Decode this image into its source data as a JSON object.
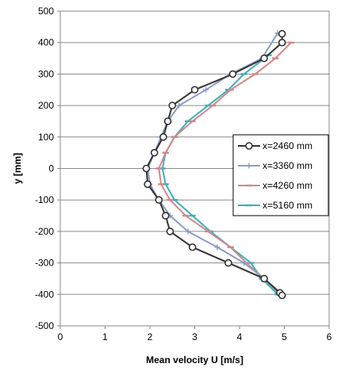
{
  "chart_data": {
    "type": "line",
    "xlabel": "Mean velocity U [m/s]",
    "ylabel": "y [mm]",
    "xlim": [
      0,
      6
    ],
    "ylim": [
      -500,
      500
    ],
    "xticks": [
      0,
      1,
      2,
      3,
      4,
      5,
      6
    ],
    "yticks": [
      -500,
      -400,
      -300,
      -200,
      -100,
      0,
      100,
      200,
      300,
      400,
      500
    ],
    "grid": {
      "y": true,
      "x": false
    },
    "legend_position": "right",
    "series": [
      {
        "name": "x=2460 mm",
        "color": "#333333",
        "marker": "circle",
        "points": [
          [
            4.95,
            428
          ],
          [
            4.95,
            400
          ],
          [
            4.55,
            350
          ],
          [
            3.85,
            300
          ],
          [
            3.0,
            250
          ],
          [
            2.5,
            200
          ],
          [
            2.4,
            150
          ],
          [
            2.3,
            100
          ],
          [
            2.1,
            50
          ],
          [
            1.92,
            0
          ],
          [
            1.95,
            -50
          ],
          [
            2.2,
            -100
          ],
          [
            2.35,
            -150
          ],
          [
            2.45,
            -200
          ],
          [
            2.95,
            -250
          ],
          [
            3.75,
            -300
          ],
          [
            4.55,
            -350
          ],
          [
            4.9,
            -395
          ],
          [
            4.95,
            -403
          ]
        ]
      },
      {
        "name": "x=3360 mm",
        "color": "#8a9cc8",
        "marker": "plus",
        "points": [
          [
            4.85,
            430
          ],
          [
            4.5,
            350
          ],
          [
            3.8,
            300
          ],
          [
            3.25,
            250
          ],
          [
            2.65,
            200
          ],
          [
            2.4,
            150
          ],
          [
            2.25,
            100
          ],
          [
            2.1,
            50
          ],
          [
            1.95,
            0
          ],
          [
            2.0,
            -50
          ],
          [
            2.2,
            -100
          ],
          [
            2.45,
            -150
          ],
          [
            2.85,
            -200
          ],
          [
            3.5,
            -250
          ],
          [
            4.1,
            -300
          ],
          [
            4.55,
            -350
          ],
          [
            4.9,
            -400
          ]
        ]
      },
      {
        "name": "x=4260 mm",
        "color": "#d4868a",
        "marker": "dash",
        "points": [
          [
            5.15,
            400
          ],
          [
            4.8,
            350
          ],
          [
            4.35,
            300
          ],
          [
            3.8,
            250
          ],
          [
            3.4,
            200
          ],
          [
            2.95,
            150
          ],
          [
            2.55,
            100
          ],
          [
            2.35,
            50
          ],
          [
            2.2,
            0
          ],
          [
            2.25,
            -50
          ],
          [
            2.45,
            -100
          ],
          [
            2.8,
            -150
          ],
          [
            3.3,
            -200
          ],
          [
            3.8,
            -250
          ],
          [
            4.15,
            -300
          ],
          [
            4.55,
            -350
          ],
          [
            4.95,
            -400
          ]
        ]
      },
      {
        "name": "x=5160 mm",
        "color": "#3ab0bc",
        "marker": "dash",
        "points": [
          [
            4.65,
            360
          ],
          [
            4.1,
            300
          ],
          [
            3.75,
            250
          ],
          [
            3.3,
            200
          ],
          [
            2.85,
            150
          ],
          [
            2.55,
            100
          ],
          [
            2.35,
            50
          ],
          [
            2.28,
            0
          ],
          [
            2.35,
            -50
          ],
          [
            2.55,
            -100
          ],
          [
            2.95,
            -150
          ],
          [
            3.35,
            -200
          ],
          [
            3.8,
            -250
          ],
          [
            4.25,
            -300
          ],
          [
            4.5,
            -350
          ],
          [
            4.85,
            -400
          ]
        ]
      }
    ]
  }
}
